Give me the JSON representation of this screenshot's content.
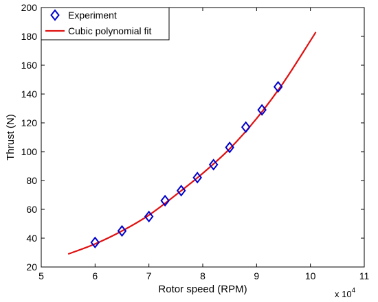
{
  "chart_data": {
    "type": "scatter",
    "xlabel": "Rotor speed (RPM)",
    "ylabel": "Thrust (N)",
    "x_multiplier_label": {
      "base": "x 10",
      "exponent": "4"
    },
    "xlim": [
      5,
      11
    ],
    "ylim": [
      20,
      200
    ],
    "xticks": [
      "5",
      "6",
      "7",
      "8",
      "9",
      "10",
      "11"
    ],
    "yticks": [
      "20",
      "40",
      "60",
      "80",
      "100",
      "120",
      "140",
      "160",
      "180",
      "200"
    ],
    "grid": false,
    "legend_position": "top-left",
    "series": [
      {
        "name": "Experiment",
        "kind": "marker",
        "marker": "diamond",
        "color": "#0000cc",
        "x": [
          6.0,
          6.5,
          7.0,
          7.3,
          7.6,
          7.9,
          8.2,
          8.5,
          8.8,
          9.1,
          9.4
        ],
        "y": [
          37,
          45,
          55,
          66,
          73,
          82,
          91,
          103,
          117,
          129,
          145
        ]
      },
      {
        "name": "Cubic polynomial fit",
        "kind": "line",
        "color": "#e01010",
        "x": [
          5.5,
          6.0,
          6.5,
          7.0,
          7.5,
          8.0,
          8.5,
          9.0,
          9.5,
          10.0,
          10.1
        ],
        "y": [
          29,
          36,
          45,
          56,
          70,
          85,
          102,
          123,
          148,
          177,
          183
        ]
      }
    ]
  }
}
